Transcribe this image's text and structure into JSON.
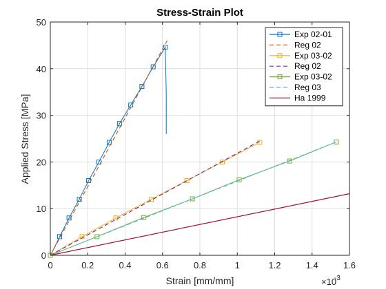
{
  "chart_data": {
    "type": "line",
    "title": "Stress-Strain Plot",
    "xlabel": "Strain [mm/mm]",
    "ylabel": "Applied Stress [MPa]",
    "x_exponent_label": "×10",
    "x_exponent_power": "-3",
    "xlim": [
      0,
      1.6
    ],
    "ylim": [
      0,
      50
    ],
    "xticks": [
      "0",
      "0.2",
      "0.4",
      "0.6",
      "0.8",
      "1",
      "1.2",
      "1.4",
      "1.6"
    ],
    "yticks": [
      "0",
      "10",
      "20",
      "30",
      "40",
      "50"
    ],
    "grid": true,
    "legend_position": "top-right",
    "series": [
      {
        "name": "Exp 02-01",
        "color": "#0072BD",
        "style": "solid",
        "marker": "square",
        "x": [
          0,
          0.02,
          0.05,
          0.1,
          0.155,
          0.205,
          0.26,
          0.315,
          0.37,
          0.43,
          0.49,
          0.55,
          0.615,
          0.62,
          0.62
        ],
        "y": [
          0,
          1.5,
          4,
          8,
          12,
          16,
          20,
          24.2,
          28.2,
          32.2,
          36.2,
          40.4,
          44.6,
          35,
          26
        ],
        "marker_x": [
          0,
          0.05,
          0.1,
          0.155,
          0.205,
          0.26,
          0.315,
          0.37,
          0.43,
          0.49,
          0.55,
          0.615
        ],
        "marker_y": [
          0,
          4,
          8,
          12,
          16,
          20,
          24.2,
          28.2,
          32.2,
          36.2,
          40.4,
          44.6
        ]
      },
      {
        "name": "Reg 02",
        "color": "#D95319",
        "style": "dashed",
        "marker": "none",
        "x": [
          0,
          0.625
        ],
        "y": [
          0,
          46
        ]
      },
      {
        "name": "Exp 03-02",
        "color": "#EDB120",
        "style": "solid",
        "marker": "square",
        "x": [
          0,
          0.17,
          0.35,
          0.54,
          0.73,
          0.92,
          1.12
        ],
        "y": [
          0,
          4,
          8,
          12,
          16,
          20,
          24.2
        ],
        "marker_x": [
          0,
          0.17,
          0.35,
          0.54,
          0.73,
          0.92,
          1.12
        ],
        "marker_y": [
          0,
          4,
          8,
          12,
          16,
          20,
          24.2
        ]
      },
      {
        "name": "Reg 02",
        "color": "#7E2F8E",
        "style": "dashed",
        "marker": "none",
        "x": [
          0,
          1.12
        ],
        "y": [
          0,
          24.5
        ]
      },
      {
        "name": "Exp 03-02",
        "color": "#77AC30",
        "style": "solid",
        "marker": "square",
        "x": [
          0,
          0.25,
          0.5,
          0.76,
          1.01,
          1.28,
          1.53
        ],
        "y": [
          0,
          4,
          8.1,
          12.1,
          16.2,
          20.2,
          24.3
        ],
        "marker_x": [
          0,
          0.25,
          0.5,
          0.76,
          1.01,
          1.28,
          1.53
        ],
        "marker_y": [
          0,
          4,
          8.1,
          12.1,
          16.2,
          20.2,
          24.3
        ]
      },
      {
        "name": "Reg 03",
        "color": "#4DBEEE",
        "style": "dashed",
        "marker": "none",
        "x": [
          0,
          1.53
        ],
        "y": [
          0,
          24.3
        ]
      },
      {
        "name": "Ha 1999",
        "color": "#A2142F",
        "style": "solid",
        "marker": "none",
        "x": [
          0,
          1.6
        ],
        "y": [
          0,
          13.2
        ]
      }
    ]
  }
}
